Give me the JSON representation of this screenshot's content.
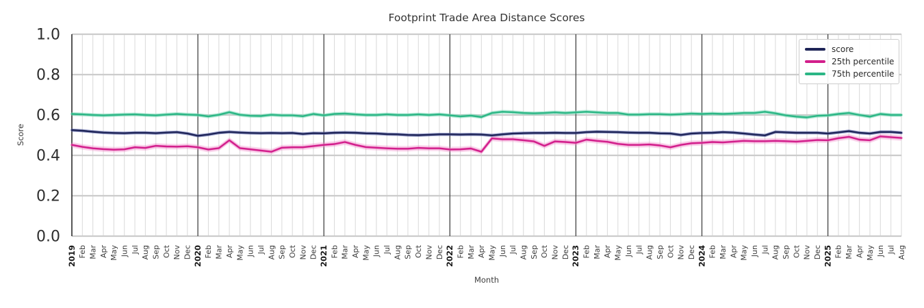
{
  "title": "Footprint Trade Area Distance Scores",
  "chart_data": {
    "type": "line",
    "title": "Footprint Trade Area Distance Scores",
    "xlabel": "Month",
    "ylabel": "Score",
    "ylim": [
      0.0,
      1.0
    ],
    "yticks": [
      0.0,
      0.2,
      0.4,
      0.6,
      0.8,
      1.0
    ],
    "grid": true,
    "legend_position": "upper right",
    "x_labels": [
      "2019",
      "Feb",
      "Mar",
      "Apr",
      "May",
      "Jun",
      "Jul",
      "Aug",
      "Sep",
      "Oct",
      "Nov",
      "Dec",
      "2020",
      "Feb",
      "Mar",
      "Apr",
      "May",
      "Jun",
      "Jul",
      "Aug",
      "Sep",
      "Oct",
      "Nov",
      "Dec",
      "2021",
      "Feb",
      "Mar",
      "Apr",
      "May",
      "Jun",
      "Jul",
      "Aug",
      "Sep",
      "Oct",
      "Nov",
      "Dec",
      "2022",
      "Feb",
      "Mar",
      "Apr",
      "May",
      "Jun",
      "Jul",
      "Aug",
      "Sep",
      "Oct",
      "Nov",
      "Dec",
      "2023",
      "Feb",
      "Mar",
      "Apr",
      "May",
      "Jun",
      "Jul",
      "Aug",
      "Sep",
      "Oct",
      "Nov",
      "Dec",
      "2024",
      "Feb",
      "Mar",
      "Apr",
      "May",
      "Jun",
      "Jul",
      "Aug",
      "Sep",
      "Oct",
      "Nov",
      "Dec",
      "2025",
      "Feb",
      "Mar",
      "Apr",
      "May",
      "Jun",
      "Jul",
      "Aug"
    ],
    "series": [
      {
        "name": "score",
        "color": "#1e2457",
        "band_color": "#5b64a8",
        "band": 0.008,
        "values": [
          0.525,
          0.522,
          0.517,
          0.513,
          0.511,
          0.51,
          0.512,
          0.512,
          0.51,
          0.513,
          0.515,
          0.508,
          0.497,
          0.503,
          0.512,
          0.516,
          0.513,
          0.511,
          0.51,
          0.511,
          0.51,
          0.511,
          0.506,
          0.51,
          0.509,
          0.512,
          0.513,
          0.512,
          0.509,
          0.508,
          0.505,
          0.504,
          0.501,
          0.5,
          0.502,
          0.504,
          0.504,
          0.503,
          0.504,
          0.503,
          0.499,
          0.504,
          0.508,
          0.51,
          0.511,
          0.511,
          0.512,
          0.511,
          0.511,
          0.515,
          0.517,
          0.516,
          0.515,
          0.513,
          0.512,
          0.512,
          0.509,
          0.508,
          0.501,
          0.508,
          0.511,
          0.512,
          0.515,
          0.513,
          0.508,
          0.503,
          0.499,
          0.516,
          0.514,
          0.512,
          0.512,
          0.512,
          0.508,
          0.514,
          0.52,
          0.512,
          0.508,
          0.516,
          0.516,
          0.512
        ]
      },
      {
        "name": "25th percentile",
        "color": "#d21e8b",
        "band_color": "#ee7fc4",
        "band": 0.014,
        "values": [
          0.452,
          0.442,
          0.435,
          0.431,
          0.428,
          0.43,
          0.44,
          0.437,
          0.447,
          0.444,
          0.443,
          0.445,
          0.44,
          0.429,
          0.436,
          0.475,
          0.436,
          0.43,
          0.424,
          0.418,
          0.438,
          0.44,
          0.44,
          0.446,
          0.452,
          0.456,
          0.466,
          0.452,
          0.441,
          0.438,
          0.435,
          0.433,
          0.433,
          0.437,
          0.435,
          0.435,
          0.429,
          0.43,
          0.434,
          0.418,
          0.484,
          0.48,
          0.48,
          0.475,
          0.469,
          0.447,
          0.469,
          0.466,
          0.462,
          0.478,
          0.472,
          0.467,
          0.457,
          0.452,
          0.452,
          0.454,
          0.449,
          0.44,
          0.452,
          0.46,
          0.462,
          0.466,
          0.464,
          0.468,
          0.472,
          0.47,
          0.47,
          0.472,
          0.47,
          0.468,
          0.472,
          0.476,
          0.475,
          0.485,
          0.492,
          0.478,
          0.475,
          0.494,
          0.49,
          0.486
        ]
      },
      {
        "name": "75th percentile",
        "color": "#2bb685",
        "band_color": "#79d9b6",
        "band": 0.01,
        "values": [
          0.605,
          0.603,
          0.6,
          0.598,
          0.6,
          0.602,
          0.603,
          0.6,
          0.598,
          0.602,
          0.605,
          0.602,
          0.6,
          0.593,
          0.601,
          0.614,
          0.601,
          0.596,
          0.595,
          0.601,
          0.598,
          0.598,
          0.594,
          0.605,
          0.598,
          0.605,
          0.607,
          0.603,
          0.6,
          0.6,
          0.603,
          0.6,
          0.6,
          0.603,
          0.6,
          0.603,
          0.598,
          0.593,
          0.597,
          0.59,
          0.61,
          0.616,
          0.614,
          0.61,
          0.608,
          0.61,
          0.613,
          0.61,
          0.613,
          0.616,
          0.613,
          0.61,
          0.61,
          0.602,
          0.602,
          0.604,
          0.604,
          0.602,
          0.604,
          0.607,
          0.605,
          0.607,
          0.605,
          0.607,
          0.61,
          0.61,
          0.616,
          0.608,
          0.598,
          0.592,
          0.588,
          0.596,
          0.598,
          0.605,
          0.61,
          0.6,
          0.592,
          0.605,
          0.6,
          0.6
        ]
      }
    ],
    "style": {
      "grid_h_color": "#cccccc",
      "grid_v_color": "#dcdcdc",
      "year_line_color": "#424242",
      "spine_color": "#2b2b2b",
      "tick_text_color": "#2e2e2e",
      "label_text_color": "#3d3d3d"
    }
  }
}
